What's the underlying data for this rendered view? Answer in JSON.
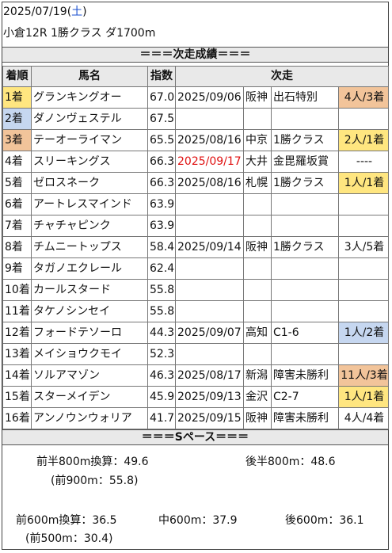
{
  "header": {
    "date": "2025/07/19",
    "weekday": "土",
    "race": "小倉12R 1勝クラス ダ1700m"
  },
  "results_title": "＝＝＝次走成績＝＝＝",
  "columns": [
    "着順",
    "馬名",
    "指数",
    "次走"
  ],
  "rows": [
    {
      "rank": "1着",
      "rank_color": "gold",
      "name": "グランキングオー",
      "index": "67.0",
      "date": "2025/09/06",
      "date_red": false,
      "track": "阪神",
      "race": "出石特別",
      "next": "4人/3着",
      "next_color": "bronze"
    },
    {
      "rank": "2着",
      "rank_color": "silver",
      "name": "ダノンヴェステル",
      "index": "67.5",
      "date": "",
      "date_red": false,
      "track": "",
      "race": "",
      "next": "",
      "next_color": ""
    },
    {
      "rank": "3着",
      "rank_color": "bronze",
      "name": "テーオーライマン",
      "index": "65.5",
      "date": "2025/08/16",
      "date_red": false,
      "track": "中京",
      "race": "1勝クラス",
      "next": "2人/1着",
      "next_color": "gold"
    },
    {
      "rank": "4着",
      "rank_color": "",
      "name": "スリーキングス",
      "index": "66.3",
      "date": "2025/09/17",
      "date_red": true,
      "track": "大井",
      "race": "金毘羅坂賞",
      "next": "----",
      "next_color": ""
    },
    {
      "rank": "5着",
      "rank_color": "",
      "name": "ゼロスネーク",
      "index": "66.3",
      "date": "2025/08/16",
      "date_red": false,
      "track": "札幌",
      "race": "1勝クラス",
      "next": "1人/1着",
      "next_color": "gold"
    },
    {
      "rank": "6着",
      "rank_color": "",
      "name": "アートレスマインド",
      "index": "63.9",
      "date": "",
      "date_red": false,
      "track": "",
      "race": "",
      "next": "",
      "next_color": ""
    },
    {
      "rank": "7着",
      "rank_color": "",
      "name": "チャチャピンク",
      "index": "63.9",
      "date": "",
      "date_red": false,
      "track": "",
      "race": "",
      "next": "",
      "next_color": ""
    },
    {
      "rank": "8着",
      "rank_color": "",
      "name": "チムニートップス",
      "index": "58.4",
      "date": "2025/09/14",
      "date_red": false,
      "track": "阪神",
      "race": "1勝クラス",
      "next": "3人/5着",
      "next_color": ""
    },
    {
      "rank": "9着",
      "rank_color": "",
      "name": "タガノエクレール",
      "index": "62.4",
      "date": "",
      "date_red": false,
      "track": "",
      "race": "",
      "next": "",
      "next_color": ""
    },
    {
      "rank": "10着",
      "rank_color": "",
      "name": "カールスタード",
      "index": "55.8",
      "date": "",
      "date_red": false,
      "track": "",
      "race": "",
      "next": "",
      "next_color": ""
    },
    {
      "rank": "11着",
      "rank_color": "",
      "name": "タケノシンセイ",
      "index": "55.8",
      "date": "",
      "date_red": false,
      "track": "",
      "race": "",
      "next": "",
      "next_color": ""
    },
    {
      "rank": "12着",
      "rank_color": "",
      "name": "フォードテソーロ",
      "index": "44.3",
      "date": "2025/09/07",
      "date_red": false,
      "track": "高知",
      "race": "C1-6",
      "next": "1人/2着",
      "next_color": "silver"
    },
    {
      "rank": "13着",
      "rank_color": "",
      "name": "メイショウクモイ",
      "index": "52.3",
      "date": "",
      "date_red": false,
      "track": "",
      "race": "",
      "next": "",
      "next_color": ""
    },
    {
      "rank": "14着",
      "rank_color": "",
      "name": "ソルアマゾン",
      "index": "46.3",
      "date": "2025/08/17",
      "date_red": false,
      "track": "新潟",
      "race": "障害未勝利",
      "next": "11人/3着",
      "next_color": "bronze"
    },
    {
      "rank": "15着",
      "rank_color": "",
      "name": "スターメイデン",
      "index": "45.9",
      "date": "2025/09/13",
      "date_red": false,
      "track": "金沢",
      "race": "C2-7",
      "next": "1人/1着",
      "next_color": "gold"
    },
    {
      "rank": "16着",
      "rank_color": "",
      "name": "アンノウンウォリア",
      "index": "41.7",
      "date": "2025/09/15",
      "date_red": false,
      "track": "阪神",
      "race": "障害未勝利",
      "next": "4人/4着",
      "next_color": ""
    }
  ],
  "pace_title": "＝＝＝Sペース＝＝＝",
  "pace": {
    "first800": "前半800m換算：49.6",
    "first900": "(前900m：55.8)",
    "last800": "後半800m：48.6",
    "first600": "前600m換算：36.5",
    "first500": "(前500m：30.4)",
    "mid600": "中600m：37.9",
    "last600": "後600m：36.1"
  },
  "colors": {
    "gold": "#ffe680",
    "silver": "#c6d7f0",
    "bronze": "#f2c49a",
    "saturday": "#1a4fd0",
    "red_date": "#e01010"
  }
}
